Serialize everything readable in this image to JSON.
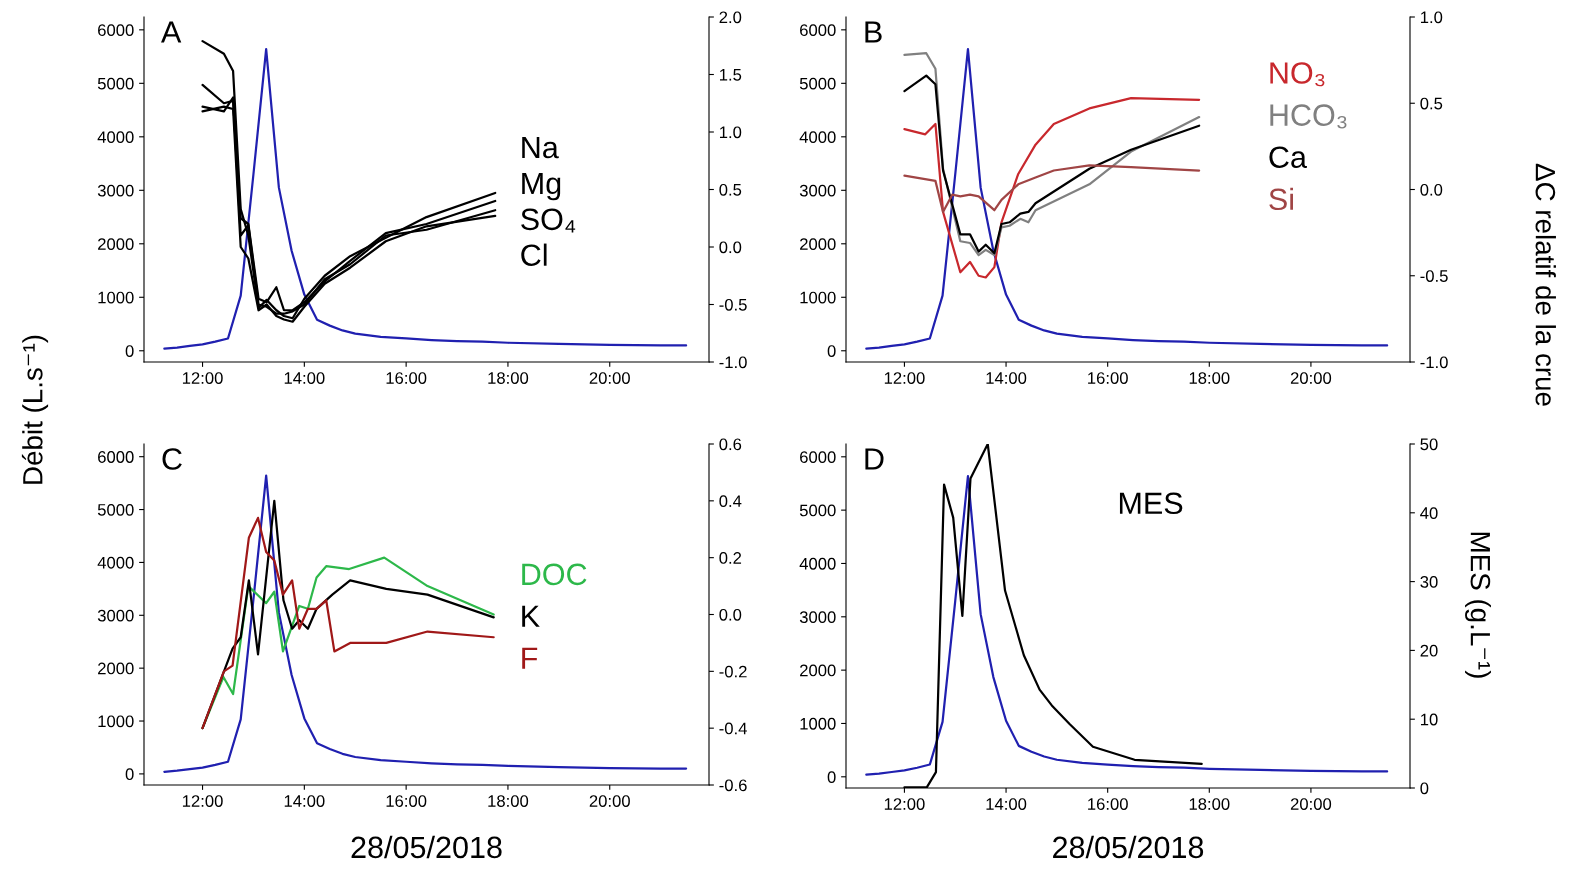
{
  "chart_data": [
    {
      "type": "line",
      "ylabel": "Débit (L.s⁻¹)",
      "annotations": [
        "A"
      ],
      "xlim": [
        10.85,
        21.95
      ],
      "xticks": [
        {
          "value": 12,
          "label": "12:00"
        },
        {
          "value": 14,
          "label": "14:00"
        },
        {
          "value": 16,
          "label": "16:00"
        },
        {
          "value": 18,
          "label": "18:00"
        },
        {
          "value": 20,
          "label": "20:00"
        }
      ],
      "ylim": [
        -210,
        6240
      ],
      "yticks": [
        0,
        1000,
        2000,
        3000,
        4000,
        5000,
        6000
      ],
      "y2lim": [
        -1,
        2
      ],
      "y2ticks": [
        {
          "value": -1,
          "label": "-1.0"
        },
        {
          "value": -0.5,
          "label": "-0.5"
        },
        {
          "value": 0,
          "label": "0.0"
        },
        {
          "value": 0.5,
          "label": "0.5"
        },
        {
          "value": 1,
          "label": "1.0"
        },
        {
          "value": 1.5,
          "label": "1.5"
        },
        {
          "value": 2,
          "label": "2.0"
        }
      ],
      "series": [
        {
          "color": "#2020b0",
          "x": [
            11.25,
            11.5,
            11.75,
            12.0,
            12.25,
            12.5,
            12.75,
            13.0,
            13.25,
            13.5,
            13.75,
            14.0,
            14.25,
            14.5,
            14.75,
            15.0,
            15.5,
            16.0,
            16.5,
            17.0,
            17.5,
            18.0,
            19.0,
            20.0,
            21.0,
            21.5
          ],
          "values": [
            40,
            60,
            90,
            120,
            170,
            230,
            1030,
            3300,
            5640,
            3050,
            1870,
            1050,
            580,
            470,
            380,
            320,
            260,
            230,
            200,
            180,
            170,
            150,
            130,
            110,
            100,
            100
          ]
        },
        {
          "name": "Na",
          "color": "#000000",
          "axis": "y2",
          "x": [
            12.0,
            12.42,
            12.6,
            12.75,
            12.9,
            13.1,
            13.26,
            13.45,
            13.6,
            13.77,
            14.0,
            14.4,
            14.9,
            15.6,
            16.4,
            17.75
          ],
          "values": [
            1.79,
            1.68,
            1.53,
            0.33,
            0.1,
            -0.53,
            -0.46,
            -0.55,
            -0.6,
            -0.62,
            -0.45,
            -0.25,
            -0.08,
            0.08,
            0.26,
            0.47
          ]
        },
        {
          "name": "Mg",
          "color": "#000000",
          "axis": "y2",
          "x": [
            12.0,
            12.42,
            12.6,
            12.75,
            12.9,
            13.1,
            13.26,
            13.45,
            13.6,
            13.77,
            14.0,
            14.4,
            14.9,
            15.6,
            16.4,
            17.75
          ],
          "values": [
            1.41,
            1.25,
            1.27,
            0.25,
            0.2,
            -0.45,
            -0.48,
            -0.35,
            -0.55,
            -0.55,
            -0.48,
            -0.3,
            -0.12,
            0.12,
            0.2,
            0.4
          ]
        },
        {
          "name": "SO₄",
          "color": "#000000",
          "axis": "y2",
          "x": [
            12.0,
            12.42,
            12.6,
            12.75,
            12.9,
            13.1,
            13.26,
            13.45,
            13.6,
            13.77,
            14.0,
            14.4,
            14.9,
            15.6,
            16.4,
            17.75
          ],
          "values": [
            1.22,
            1.18,
            1.3,
            0.1,
            0.19,
            -0.5,
            -0.52,
            -0.58,
            -0.58,
            -0.56,
            -0.5,
            -0.28,
            -0.15,
            0.1,
            0.15,
            0.32
          ]
        },
        {
          "name": "Cl",
          "color": "#000000",
          "axis": "y2",
          "x": [
            12.0,
            12.42,
            12.6,
            12.75,
            12.9,
            13.1,
            13.26,
            13.45,
            13.6,
            13.77,
            14.0,
            14.4,
            14.9,
            15.6,
            16.4,
            17.75
          ],
          "values": [
            1.18,
            1.22,
            1.2,
            0.0,
            -0.1,
            -0.55,
            -0.5,
            -0.6,
            -0.63,
            -0.65,
            -0.52,
            -0.32,
            -0.18,
            0.05,
            0.18,
            0.27
          ]
        }
      ]
    },
    {
      "type": "line",
      "y2label": "ΔC relatif de la crue",
      "annotations": [
        "B"
      ],
      "xlim": [
        10.85,
        21.95
      ],
      "xticks": [
        {
          "value": 12,
          "label": "12:00"
        },
        {
          "value": 14,
          "label": "14:00"
        },
        {
          "value": 16,
          "label": "16:00"
        },
        {
          "value": 18,
          "label": "18:00"
        },
        {
          "value": 20,
          "label": "20:00"
        }
      ],
      "ylim": [
        -210,
        6240
      ],
      "yticks": [
        0,
        1000,
        2000,
        3000,
        4000,
        5000,
        6000
      ],
      "y2lim": [
        -1,
        1
      ],
      "y2ticks": [
        {
          "value": -1,
          "label": "-1.0"
        },
        {
          "value": -0.5,
          "label": "-0.5"
        },
        {
          "value": 0,
          "label": "0.0"
        },
        {
          "value": 0.5,
          "label": "0.5"
        },
        {
          "value": 1,
          "label": "1.0"
        }
      ],
      "series": [
        {
          "color": "#2020b0",
          "x": [
            11.25,
            11.5,
            11.75,
            12.0,
            12.25,
            12.5,
            12.75,
            13.0,
            13.25,
            13.5,
            13.75,
            14.0,
            14.25,
            14.5,
            14.75,
            15.0,
            15.5,
            16.0,
            16.5,
            17.0,
            17.5,
            18.0,
            19.0,
            20.0,
            21.0,
            21.5
          ],
          "values": [
            40,
            60,
            90,
            120,
            170,
            230,
            1030,
            3300,
            5640,
            3050,
            1870,
            1050,
            580,
            470,
            380,
            320,
            260,
            230,
            200,
            180,
            170,
            150,
            130,
            110,
            100,
            100
          ]
        },
        {
          "name": "NO₃",
          "color": "#c8282d",
          "axis": "y2",
          "x": [
            12.0,
            12.41,
            12.61,
            12.76,
            13.1,
            13.29,
            13.46,
            13.6,
            13.77,
            13.91,
            14.24,
            14.58,
            14.94,
            15.64,
            16.46,
            17.8
          ],
          "values": [
            0.35,
            0.32,
            0.38,
            -0.13,
            -0.48,
            -0.42,
            -0.5,
            -0.51,
            -0.45,
            -0.19,
            0.09,
            0.26,
            0.38,
            0.47,
            0.53,
            0.52
          ]
        },
        {
          "name": "HCO₃",
          "color": "#808080",
          "axis": "y2",
          "x": [
            12.0,
            12.43,
            12.61,
            12.76,
            13.1,
            13.29,
            13.46,
            13.6,
            13.77,
            13.91,
            14.07,
            14.28,
            14.44,
            14.58,
            15.64,
            16.46,
            17.8
          ],
          "values": [
            0.78,
            0.79,
            0.7,
            0.12,
            -0.3,
            -0.31,
            -0.38,
            -0.35,
            -0.38,
            -0.22,
            -0.21,
            -0.17,
            -0.19,
            -0.12,
            0.03,
            0.22,
            0.42
          ]
        },
        {
          "name": "Ca",
          "color": "#000000",
          "axis": "y2",
          "x": [
            12.0,
            12.43,
            12.61,
            12.76,
            13.1,
            13.29,
            13.46,
            13.6,
            13.77,
            13.91,
            14.07,
            14.28,
            14.44,
            14.58,
            15.64,
            16.46,
            17.8
          ],
          "values": [
            0.57,
            0.66,
            0.61,
            0.11,
            -0.26,
            -0.26,
            -0.36,
            -0.32,
            -0.37,
            -0.2,
            -0.19,
            -0.14,
            -0.13,
            -0.08,
            0.12,
            0.23,
            0.37
          ]
        },
        {
          "name": "Si",
          "color": "#a04545",
          "axis": "y2",
          "x": [
            12.0,
            12.61,
            12.76,
            12.94,
            13.1,
            13.29,
            13.46,
            13.77,
            13.91,
            14.24,
            14.58,
            14.94,
            15.64,
            16.46,
            17.8
          ],
          "values": [
            0.08,
            0.05,
            -0.13,
            -0.03,
            -0.04,
            -0.03,
            -0.04,
            -0.12,
            -0.06,
            0.03,
            0.07,
            0.11,
            0.14,
            0.13,
            0.11
          ]
        }
      ]
    },
    {
      "type": "line",
      "xlabel": "28/05/2018",
      "annotations": [
        "C"
      ],
      "xlim": [
        10.85,
        21.95
      ],
      "xticks": [
        {
          "value": 12,
          "label": "12:00"
        },
        {
          "value": 14,
          "label": "14:00"
        },
        {
          "value": 16,
          "label": "16:00"
        },
        {
          "value": 18,
          "label": "18:00"
        },
        {
          "value": 20,
          "label": "20:00"
        }
      ],
      "ylim": [
        -210,
        6240
      ],
      "yticks": [
        0,
        1000,
        2000,
        3000,
        4000,
        5000,
        6000
      ],
      "y2lim": [
        -0.6,
        0.6
      ],
      "y2ticks": [
        {
          "value": -0.6,
          "label": "-0.6"
        },
        {
          "value": -0.4,
          "label": "-0.4"
        },
        {
          "value": -0.2,
          "label": "-0.2"
        },
        {
          "value": 0,
          "label": "0.0"
        },
        {
          "value": 0.2,
          "label": "0.2"
        },
        {
          "value": 0.4,
          "label": "0.4"
        },
        {
          "value": 0.6,
          "label": "0.6"
        }
      ],
      "series": [
        {
          "color": "#2020b0",
          "x": [
            11.25,
            11.5,
            11.75,
            12.0,
            12.25,
            12.5,
            12.75,
            13.0,
            13.25,
            13.5,
            13.75,
            14.0,
            14.25,
            14.5,
            14.75,
            15.0,
            15.5,
            16.0,
            16.5,
            17.0,
            17.5,
            18.0,
            19.0,
            20.0,
            21.0,
            21.5
          ],
          "values": [
            40,
            60,
            90,
            120,
            170,
            230,
            1030,
            3300,
            5640,
            3050,
            1870,
            1050,
            580,
            470,
            380,
            320,
            260,
            230,
            200,
            180,
            170,
            150,
            130,
            110,
            100,
            100
          ]
        },
        {
          "name": "DOC",
          "color": "#2db84a",
          "axis": "y2",
          "x": [
            12.0,
            12.41,
            12.6,
            12.9,
            13.25,
            13.41,
            13.58,
            13.9,
            14.07,
            14.24,
            14.43,
            14.88,
            15.57,
            16.42,
            17.72
          ],
          "values": [
            -0.4,
            -0.22,
            -0.28,
            0.1,
            0.04,
            0.08,
            -0.13,
            0.03,
            0.02,
            0.13,
            0.17,
            0.16,
            0.2,
            0.1,
            0.0
          ]
        },
        {
          "name": "K",
          "color": "#000000",
          "axis": "y2",
          "x": [
            12.0,
            12.59,
            12.75,
            12.91,
            13.09,
            13.41,
            13.59,
            13.76,
            13.9,
            14.07,
            14.24,
            14.55,
            14.9,
            15.61,
            16.42,
            17.72
          ],
          "values": [
            -0.4,
            -0.12,
            -0.08,
            0.12,
            -0.14,
            0.4,
            0.05,
            -0.05,
            -0.02,
            -0.05,
            0.02,
            0.07,
            0.12,
            0.09,
            0.07,
            -0.01
          ]
        },
        {
          "name": "F",
          "color": "#a01818",
          "axis": "y2",
          "x": [
            12.0,
            12.42,
            12.59,
            12.91,
            13.09,
            13.25,
            13.41,
            13.58,
            13.76,
            13.9,
            14.07,
            14.24,
            14.43,
            14.59,
            14.9,
            15.61,
            16.42,
            17.72
          ],
          "values": [
            -0.4,
            -0.2,
            -0.18,
            0.27,
            0.34,
            0.22,
            0.19,
            0.07,
            0.12,
            -0.05,
            0.02,
            0.02,
            0.05,
            -0.13,
            -0.1,
            -0.1,
            -0.06,
            -0.08
          ]
        }
      ]
    },
    {
      "type": "line",
      "xlabel": "28/05/2018",
      "y2label": "MES (g.L⁻¹)",
      "annotations": [
        "D"
      ],
      "xlim": [
        10.85,
        21.95
      ],
      "xticks": [
        {
          "value": 12,
          "label": "12:00"
        },
        {
          "value": 14,
          "label": "14:00"
        },
        {
          "value": 16,
          "label": "16:00"
        },
        {
          "value": 18,
          "label": "18:00"
        },
        {
          "value": 20,
          "label": "20:00"
        }
      ],
      "ylim": [
        -210,
        6240
      ],
      "yticks": [
        0,
        1000,
        2000,
        3000,
        4000,
        5000,
        6000
      ],
      "y2lim": [
        0,
        50
      ],
      "y2ticks": [
        0,
        10,
        20,
        30,
        40,
        50
      ],
      "series": [
        {
          "color": "#2020b0",
          "x": [
            11.25,
            11.5,
            11.75,
            12.0,
            12.25,
            12.5,
            12.75,
            13.0,
            13.25,
            13.5,
            13.75,
            14.0,
            14.25,
            14.5,
            14.75,
            15.0,
            15.5,
            16.0,
            16.5,
            17.0,
            17.5,
            18.0,
            19.0,
            20.0,
            21.0,
            21.5
          ],
          "values": [
            40,
            60,
            90,
            120,
            170,
            230,
            1030,
            3300,
            5640,
            3050,
            1870,
            1050,
            580,
            470,
            380,
            320,
            260,
            230,
            200,
            180,
            170,
            150,
            130,
            110,
            100,
            100
          ]
        },
        {
          "name": "MES",
          "color": "#000000",
          "axis": "y2",
          "x": [
            12.0,
            12.44,
            12.62,
            12.78,
            12.96,
            13.14,
            13.3,
            13.64,
            13.98,
            14.35,
            14.66,
            14.9,
            15.25,
            15.71,
            16.53,
            17.85
          ],
          "values": [
            0.1,
            0.1,
            2.3,
            44.1,
            39.3,
            25,
            45,
            50,
            28.7,
            19.3,
            14.3,
            12,
            9.3,
            6,
            4.1,
            3.5
          ]
        }
      ]
    }
  ]
}
